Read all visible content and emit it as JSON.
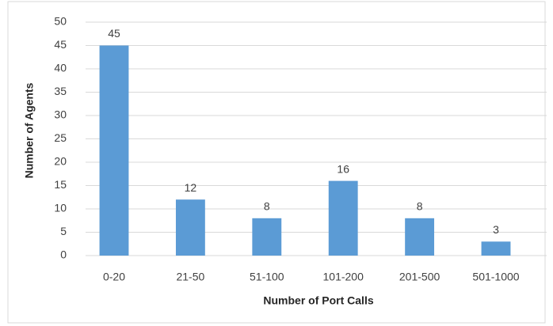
{
  "chart_data": {
    "type": "bar",
    "x_label": "Number of Port Calls",
    "y_label": "Number of Agents",
    "categories": [
      "0-20",
      "21-50",
      "51-100",
      "101-200",
      "201-500",
      "501-1000"
    ],
    "values": [
      45,
      12,
      8,
      16,
      8,
      3
    ],
    "color": "#5b9bd5",
    "ylim": [
      0,
      50
    ],
    "yticks": [
      0,
      5,
      10,
      15,
      20,
      25,
      30,
      35,
      40,
      45,
      50
    ],
    "grid": true
  }
}
